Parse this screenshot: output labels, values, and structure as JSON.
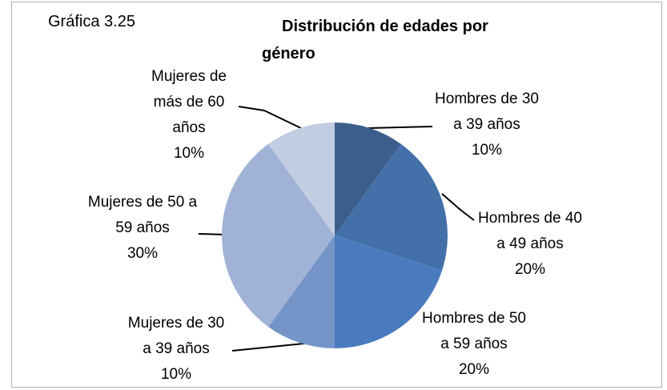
{
  "chart_data": {
    "type": "pie",
    "label": "Gráfica 3.25",
    "title": "Distribución de edades por género",
    "categories": [
      "Hombres de 30 a 39 años",
      "Hombres de 40 a 49 años",
      "Hombres de 50 a 59 años",
      "Mujeres de 30 a 39 años",
      "Mujeres de 50 a 59 años",
      "Mujeres de más de 60 años"
    ],
    "values": [
      10,
      20,
      20,
      10,
      30,
      10
    ],
    "value_labels": [
      "10%",
      "20%",
      "20%",
      "10%",
      "30%",
      "10%"
    ],
    "colors": [
      "#3b5e8c",
      "#4370a8",
      "#4b7bbf",
      "#7594c7",
      "#a0b3d6",
      "#c3cde2"
    ]
  }
}
